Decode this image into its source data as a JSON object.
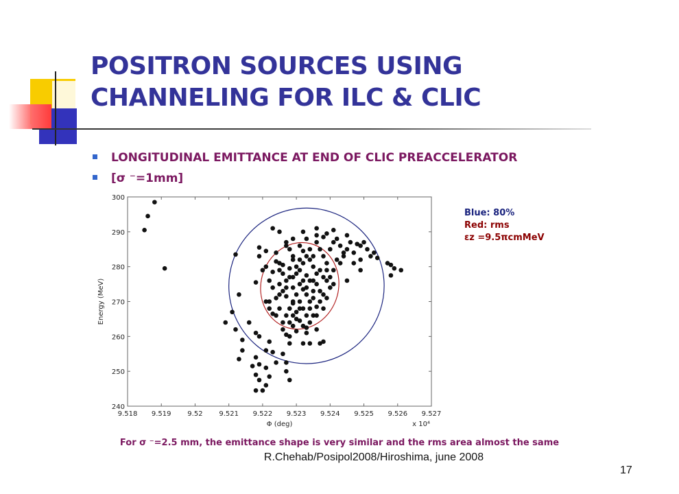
{
  "slide": {
    "title": "POSITRON SOURCES USING CHANNELING FOR ILC & CLIC",
    "bullets": [
      "LONGITUDINAL EMITTANCE AT END OF CLIC PREACCELERATOR",
      "[σ ⁻=1mm]"
    ],
    "legend": {
      "blue": "Blue: 80%",
      "red": "Red: rms",
      "emittance": "εz =9.5πcmMeV"
    },
    "caption": "For σ ⁻=2.5 mm, the emittance shape is very similar and the rms area almost  the same",
    "footer": "R.Chehab/Posipol2008/Hiroshima, june 2008",
    "page_number": "17"
  },
  "chart_data": {
    "type": "scatter",
    "xlabel": "Φ (deg)",
    "ylabel": "Energy  (MeV)",
    "x_multiplier_label": "x 10⁴",
    "xlim": [
      9.518,
      9.527
    ],
    "ylim": [
      240,
      300
    ],
    "x_ticks": [
      "9.518",
      "9.519",
      "9.52",
      "9.521",
      "9.522",
      "9.523",
      "9.524",
      "9.525",
      "9.526",
      "9.527"
    ],
    "y_ticks": [
      "240",
      "250",
      "260",
      "270",
      "280",
      "290",
      "300"
    ],
    "grid": false,
    "ellipses": [
      {
        "name": "Blue: 80%",
        "color": "#1a237e",
        "cx": 9.5233,
        "cy": 274.5,
        "rx": 0.0023,
        "ry": 22.3,
        "tilt_deg": 18
      },
      {
        "name": "Red: rms",
        "color": "#b22222",
        "cx": 9.5231,
        "cy": 274.5,
        "rx": 0.00115,
        "ry": 12.5,
        "tilt_deg": 15
      }
    ],
    "points": [
      [
        9.5188,
        298.5
      ],
      [
        9.5186,
        294.5
      ],
      [
        9.5185,
        290.5
      ],
      [
        9.5191,
        279.5
      ],
      [
        9.5209,
        264
      ],
      [
        9.5212,
        262
      ],
      [
        9.5211,
        267
      ],
      [
        9.5213,
        272
      ],
      [
        9.5212,
        283.5
      ],
      [
        9.5213,
        253.5
      ],
      [
        9.5214,
        256
      ],
      [
        9.5214,
        259
      ],
      [
        9.5216,
        264
      ],
      [
        9.5218,
        261
      ],
      [
        9.5219,
        260
      ],
      [
        9.5221,
        280
      ],
      [
        9.5218,
        275.5
      ],
      [
        9.5219,
        285.5
      ],
      [
        9.5224,
        281.5
      ],
      [
        9.5223,
        291
      ],
      [
        9.5225,
        290
      ],
      [
        9.5229,
        283
      ],
      [
        9.5226,
        278
      ],
      [
        9.5228,
        277
      ],
      [
        9.5227,
        276
      ],
      [
        9.5225,
        275
      ],
      [
        9.5224,
        271
      ],
      [
        9.5221,
        270
      ],
      [
        9.5222,
        268
      ],
      [
        9.5224,
        266
      ],
      [
        9.5226,
        262
      ],
      [
        9.5228,
        264
      ],
      [
        9.5231,
        286
      ],
      [
        9.5232,
        284.5
      ],
      [
        9.5233,
        283
      ],
      [
        9.5234,
        282
      ],
      [
        9.5235,
        280
      ],
      [
        9.5236,
        278
      ],
      [
        9.5233,
        277.5
      ],
      [
        9.5234,
        276
      ],
      [
        9.5231,
        275
      ],
      [
        9.5232,
        273.5
      ],
      [
        9.5233,
        272
      ],
      [
        9.5234,
        270
      ],
      [
        9.5235,
        271
      ],
      [
        9.5232,
        268
      ],
      [
        9.5233,
        266
      ],
      [
        9.5231,
        264.5
      ],
      [
        9.5232,
        263
      ],
      [
        9.5233,
        261
      ],
      [
        9.5229,
        270
      ],
      [
        9.5228,
        268
      ],
      [
        9.5227,
        266
      ],
      [
        9.5226,
        264
      ],
      [
        9.5227,
        286
      ],
      [
        9.5228,
        285
      ],
      [
        9.5229,
        282
      ],
      [
        9.523,
        280
      ],
      [
        9.523,
        278
      ],
      [
        9.5231,
        282
      ],
      [
        9.5236,
        287
      ],
      [
        9.5237,
        285
      ],
      [
        9.5238,
        283
      ],
      [
        9.5239,
        281
      ],
      [
        9.5237,
        279
      ],
      [
        9.5238,
        277
      ],
      [
        9.5236,
        275
      ],
      [
        9.5237,
        273
      ],
      [
        9.5238,
        272
      ],
      [
        9.5239,
        276
      ],
      [
        9.5241,
        279
      ],
      [
        9.5242,
        282
      ],
      [
        9.524,
        285
      ],
      [
        9.5241,
        287
      ],
      [
        9.5243,
        286
      ],
      [
        9.5244,
        284
      ],
      [
        9.5246,
        287
      ],
      [
        9.5248,
        286.5
      ],
      [
        9.5247,
        284
      ],
      [
        9.5249,
        282
      ],
      [
        9.5243,
        281
      ],
      [
        9.5236,
        289
      ],
      [
        9.5238,
        288.5
      ],
      [
        9.5242,
        288
      ],
      [
        9.5239,
        289.5
      ],
      [
        9.5245,
        289
      ],
      [
        9.5241,
        290.5
      ],
      [
        9.5236,
        291
      ],
      [
        9.5232,
        290
      ],
      [
        9.5229,
        288
      ],
      [
        9.5227,
        287
      ],
      [
        9.5225,
        281
      ],
      [
        9.5226,
        280.5
      ],
      [
        9.5228,
        279.5
      ],
      [
        9.5229,
        277
      ],
      [
        9.5226,
        273
      ],
      [
        9.5227,
        271.5
      ],
      [
        9.5229,
        269.5
      ],
      [
        9.523,
        267
      ],
      [
        9.523,
        265
      ],
      [
        9.5229,
        263
      ],
      [
        9.5227,
        260.5
      ],
      [
        9.5228,
        258
      ],
      [
        9.523,
        261.5
      ],
      [
        9.5233,
        262.5
      ],
      [
        9.5235,
        266
      ],
      [
        9.5236,
        268.5
      ],
      [
        9.5238,
        268
      ],
      [
        9.5234,
        264
      ],
      [
        9.5236,
        262
      ],
      [
        9.5237,
        258
      ],
      [
        9.5228,
        260
      ],
      [
        9.5222,
        258.5
      ],
      [
        9.5223,
        255.5
      ],
      [
        9.5221,
        256
      ],
      [
        9.5218,
        254
      ],
      [
        9.5219,
        252
      ],
      [
        9.5221,
        251
      ],
      [
        9.5217,
        251.5
      ],
      [
        9.5218,
        249
      ],
      [
        9.5219,
        247.5
      ],
      [
        9.5221,
        246
      ],
      [
        9.5218,
        244.5
      ],
      [
        9.522,
        244.5
      ],
      [
        9.5222,
        248.5
      ],
      [
        9.5224,
        252.5
      ],
      [
        9.5227,
        252.5
      ],
      [
        9.5227,
        250
      ],
      [
        9.5228,
        247.5
      ],
      [
        9.5226,
        255
      ],
      [
        9.5232,
        258
      ],
      [
        9.5234,
        258
      ],
      [
        9.5238,
        258.5
      ],
      [
        9.5224,
        284
      ],
      [
        9.5221,
        284.5
      ],
      [
        9.5219,
        283
      ],
      [
        9.522,
        279
      ],
      [
        9.5223,
        278.5
      ],
      [
        9.5222,
        276
      ],
      [
        9.5223,
        274
      ],
      [
        9.5225,
        279
      ],
      [
        9.5225,
        272
      ],
      [
        9.5222,
        270
      ],
      [
        9.5223,
        266.5
      ],
      [
        9.5225,
        268
      ],
      [
        9.5239,
        279
      ],
      [
        9.524,
        277
      ],
      [
        9.5241,
        275
      ],
      [
        9.5244,
        283
      ],
      [
        9.5245,
        285
      ],
      [
        9.5247,
        281
      ],
      [
        9.5249,
        279
      ],
      [
        9.5252,
        283
      ],
      [
        9.5251,
        285
      ],
      [
        9.5254,
        282.5
      ],
      [
        9.5257,
        281
      ],
      [
        9.5258,
        280.5
      ],
      [
        9.5259,
        279.5
      ],
      [
        9.5258,
        277.5
      ],
      [
        9.5261,
        279
      ],
      [
        9.525,
        287
      ],
      [
        9.5249,
        286
      ],
      [
        9.5253,
        284
      ],
      [
        9.5245,
        276
      ],
      [
        9.5231,
        279
      ],
      [
        9.5232,
        281
      ],
      [
        9.5234,
        285
      ],
      [
        9.5235,
        283
      ],
      [
        9.5233,
        288
      ],
      [
        9.5235,
        276
      ],
      [
        9.5233,
        274
      ],
      [
        9.5231,
        270
      ],
      [
        9.5232,
        276
      ],
      [
        9.5229,
        274
      ],
      [
        9.523,
        272
      ],
      [
        9.5227,
        274
      ],
      [
        9.5229,
        266
      ],
      [
        9.5231,
        268
      ],
      [
        9.5234,
        268
      ],
      [
        9.5235,
        273
      ],
      [
        9.5237,
        270
      ],
      [
        9.5236,
        266
      ],
      [
        9.5239,
        271
      ],
      [
        9.524,
        274
      ]
    ]
  }
}
